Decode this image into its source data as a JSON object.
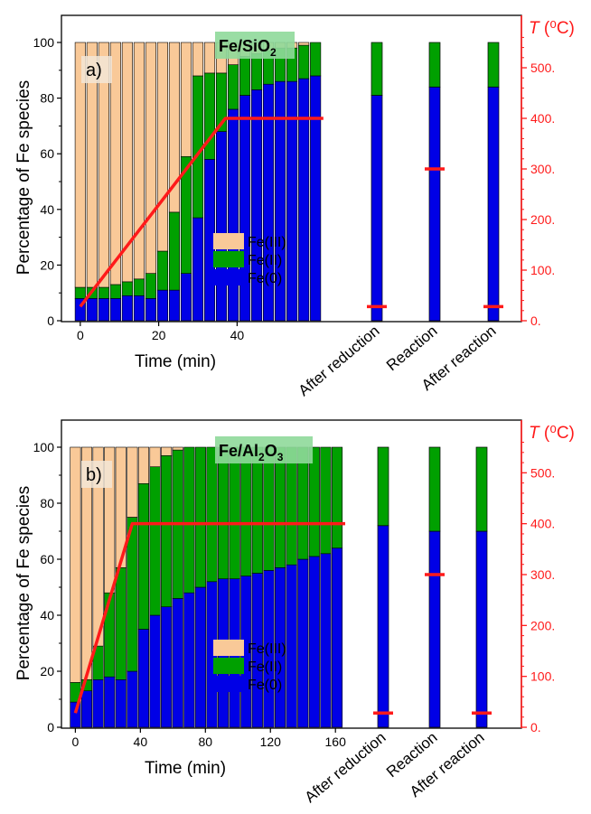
{
  "colors": {
    "fe3": "#f9c998",
    "fe2": "#00a000",
    "fe0": "#0000e6",
    "temp": "#ff1a1a",
    "axis": "#000000",
    "tag_bg": "#f3e6d6",
    "label_bg": "#8fd99a"
  },
  "chart_data": [
    {
      "type": "bar",
      "stacked": true,
      "panel_tag": "a)",
      "sample_label_main": "Fe/SiO",
      "sample_label_sub": "2",
      "xlabel": "Time (min)",
      "ylabel": "Percentage of Fe species",
      "y2label_italic": "T",
      "y2label_rest": " (⁰C)",
      "xlim": [
        -2.5,
        62.5
      ],
      "ylim": [
        0,
        100
      ],
      "y2lim": [
        0,
        600
      ],
      "xticks": [
        0,
        20,
        40
      ],
      "yticks": [
        0,
        20,
        40,
        60,
        80,
        100
      ],
      "y2ticks": [
        "0.",
        "100.",
        "200.",
        "300.",
        "400.",
        "500."
      ],
      "y2tick_values": [
        0,
        100,
        200,
        300,
        400,
        500
      ],
      "legend": [
        "Fe(III)",
        "Fe(II)",
        "Fe(0)"
      ],
      "legend_position": "lower-center",
      "time_x": [
        0,
        3,
        6,
        9,
        12,
        15,
        18,
        21,
        24,
        27,
        30,
        33,
        36,
        39,
        42,
        45,
        48,
        51,
        54,
        57,
        60
      ],
      "fe0": [
        8,
        8,
        8,
        8,
        9,
        9,
        8,
        11,
        11,
        17,
        37,
        58,
        68,
        76,
        81,
        83,
        85,
        86,
        86,
        87,
        88
      ],
      "fe2": [
        4,
        4,
        4,
        5,
        5,
        6,
        9,
        14,
        28,
        42,
        51,
        31,
        21,
        16,
        14,
        13,
        12,
        12,
        12,
        12,
        12
      ],
      "fe3": [
        88,
        88,
        88,
        87,
        86,
        85,
        83,
        75,
        61,
        41,
        12,
        11,
        11,
        8,
        5,
        4,
        3,
        2,
        2,
        1,
        0
      ],
      "temperature_x": [
        0,
        37,
        62
      ],
      "temperature_y": [
        28,
        400,
        400
      ],
      "conditions": [
        "After reduction",
        "Reaction",
        "After reaction"
      ],
      "condition_fe0": [
        81,
        84,
        84
      ],
      "condition_fe2": [
        19,
        16,
        16
      ],
      "condition_temperature": [
        28,
        300,
        28
      ]
    },
    {
      "type": "bar",
      "stacked": true,
      "panel_tag": "b)",
      "sample_label_main": "Fe/Al",
      "sample_label_sub": "2",
      "sample_label_tail": "O",
      "sample_label_tail_sub": "3",
      "xlabel": "Time (min)",
      "ylabel": "Percentage of Fe species",
      "y2label_italic": "T",
      "y2label_rest": " (⁰C)",
      "xlim": [
        -3,
        166
      ],
      "ylim": [
        0,
        100
      ],
      "y2lim": [
        0,
        600
      ],
      "xticks": [
        0,
        40,
        80,
        120,
        160
      ],
      "yticks": [
        0,
        20,
        40,
        60,
        80,
        100
      ],
      "y2ticks": [
        "0.",
        "100.",
        "200.",
        "300.",
        "400.",
        "500."
      ],
      "y2tick_values": [
        0,
        100,
        200,
        300,
        400,
        500
      ],
      "legend": [
        "Fe(III)",
        "Fe(II)",
        "Fe(0)"
      ],
      "legend_position": "lower-center",
      "time_x": [
        0,
        7,
        14,
        21,
        28,
        35,
        42,
        49,
        56,
        63,
        70,
        77,
        84,
        91,
        98,
        105,
        112,
        119,
        126,
        133,
        140,
        147,
        154,
        161
      ],
      "fe0": [
        9,
        13,
        17,
        18,
        17,
        20,
        35,
        40,
        43,
        46,
        48,
        50,
        52,
        53,
        53,
        54,
        55,
        56,
        57,
        58,
        60,
        61,
        62,
        64
      ],
      "fe2": [
        7,
        4,
        12,
        30,
        40,
        55,
        52,
        53,
        54,
        53,
        52,
        50,
        48,
        47,
        47,
        46,
        45,
        44,
        43,
        42,
        40,
        39,
        38,
        36
      ],
      "fe3": [
        84,
        83,
        71,
        52,
        43,
        25,
        13,
        7,
        3,
        1,
        0,
        0,
        0,
        0,
        0,
        0,
        0,
        0,
        0,
        0,
        0,
        0,
        0,
        0
      ],
      "temperature_x": [
        0,
        35,
        166
      ],
      "temperature_y": [
        28,
        400,
        400
      ],
      "conditions": [
        "After reduction",
        "Reaction",
        "After reaction"
      ],
      "condition_fe0": [
        72,
        70,
        70
      ],
      "condition_fe2": [
        28,
        30,
        30
      ],
      "condition_temperature": [
        28,
        300,
        28
      ]
    }
  ]
}
